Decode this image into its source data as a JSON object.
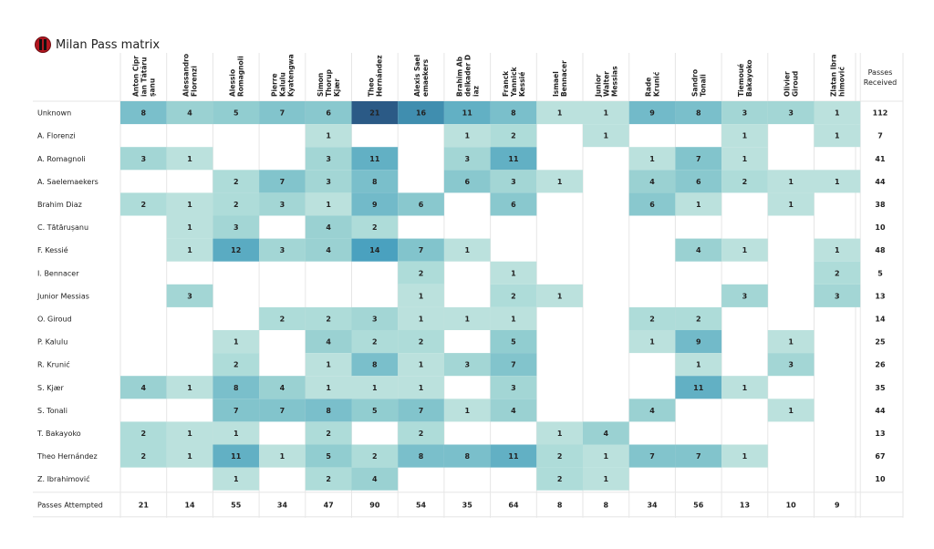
{
  "title": "Milan Pass matrix",
  "chart_data": {
    "type": "heatmap",
    "title": "Milan Pass matrix",
    "columns": [
      "Anton Cipr|ian Tătăru|șanu",
      "Alessandro|Florenzi",
      "Alessio|Romagnoli",
      "Pierre|Kalulu|Kyatengwa",
      "Simon|Thorup|Kjær",
      "Theo|Hernández",
      "Alexis Sael|emaekers",
      "Brahim Ab|delkader D|iaz",
      "Franck|Yannick|Kessié",
      "Ismael|Bennacer",
      "Junior|Walter|Messias",
      "Rade|Krunić",
      "Sandro|Tonali",
      "Tiemoué|Bakayoko",
      "Olivier|Giroud",
      "Zlatan Ibra|himović"
    ],
    "rows": [
      "Unknown",
      "A. Florenzi",
      "A. Romagnoli",
      "A. Saelemaekers",
      "Brahim Diaz",
      "C. Tătărușanu",
      "F. Kessié",
      "I. Bennacer",
      "Junior Messias",
      "O. Giroud",
      "P. Kalulu",
      "R. Krunić",
      "S. Kjær",
      "S. Tonali",
      "T. Bakayoko",
      "Theo Hernández",
      "Z. Ibrahimović"
    ],
    "values": [
      [
        8,
        4,
        5,
        7,
        6,
        21,
        16,
        11,
        8,
        1,
        1,
        9,
        8,
        3,
        3,
        1
      ],
      [
        null,
        null,
        null,
        null,
        1,
        null,
        null,
        1,
        2,
        null,
        1,
        null,
        null,
        1,
        null,
        1
      ],
      [
        3,
        1,
        null,
        null,
        3,
        11,
        null,
        3,
        11,
        null,
        null,
        1,
        7,
        1,
        null,
        null
      ],
      [
        null,
        null,
        2,
        7,
        3,
        8,
        null,
        6,
        3,
        1,
        null,
        4,
        6,
        2,
        1,
        1
      ],
      [
        2,
        1,
        2,
        3,
        1,
        9,
        6,
        null,
        6,
        null,
        null,
        6,
        1,
        null,
        1,
        null
      ],
      [
        null,
        1,
        3,
        null,
        4,
        2,
        null,
        null,
        null,
        null,
        null,
        null,
        null,
        null,
        null,
        null
      ],
      [
        null,
        1,
        12,
        3,
        4,
        14,
        7,
        1,
        null,
        null,
        null,
        null,
        4,
        1,
        null,
        1
      ],
      [
        null,
        null,
        null,
        null,
        null,
        null,
        2,
        null,
        1,
        null,
        null,
        null,
        null,
        null,
        null,
        2
      ],
      [
        null,
        3,
        null,
        null,
        null,
        null,
        1,
        null,
        2,
        1,
        null,
        null,
        null,
        3,
        null,
        3
      ],
      [
        null,
        null,
        null,
        2,
        2,
        3,
        1,
        1,
        1,
        null,
        null,
        2,
        2,
        null,
        null,
        null
      ],
      [
        null,
        null,
        1,
        null,
        4,
        2,
        2,
        null,
        5,
        null,
        null,
        1,
        9,
        null,
        1,
        null
      ],
      [
        null,
        null,
        2,
        null,
        1,
        8,
        1,
        3,
        7,
        null,
        null,
        null,
        1,
        null,
        3,
        null
      ],
      [
        4,
        1,
        8,
        4,
        1,
        1,
        1,
        null,
        3,
        null,
        null,
        null,
        11,
        1,
        null,
        null
      ],
      [
        null,
        null,
        7,
        7,
        8,
        5,
        7,
        1,
        4,
        null,
        null,
        4,
        null,
        null,
        1,
        null
      ],
      [
        2,
        1,
        1,
        null,
        2,
        null,
        2,
        null,
        null,
        1,
        4,
        null,
        null,
        null,
        null,
        null
      ],
      [
        2,
        1,
        11,
        1,
        5,
        2,
        8,
        8,
        11,
        2,
        1,
        7,
        7,
        1,
        null,
        null
      ],
      [
        null,
        null,
        1,
        null,
        2,
        4,
        null,
        null,
        null,
        2,
        1,
        null,
        null,
        null,
        null,
        null
      ]
    ],
    "row_totals_label": "Passes|Received",
    "row_totals": [
      112,
      7,
      41,
      44,
      38,
      10,
      48,
      5,
      13,
      14,
      25,
      26,
      35,
      44,
      13,
      67,
      10
    ],
    "col_totals_label": "Passes Attempted",
    "col_totals": [
      21,
      14,
      55,
      34,
      47,
      90,
      54,
      35,
      64,
      8,
      8,
      34,
      56,
      13,
      10,
      9
    ],
    "color_range": [
      "#cdeae3",
      "#2b5a86"
    ]
  }
}
